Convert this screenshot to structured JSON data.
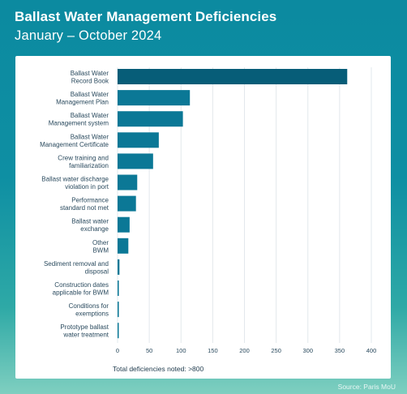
{
  "header": {
    "title": "Ballast Water Management Deficiencies",
    "subtitle": "January – October 2024"
  },
  "footer": {
    "total_note": "Total deficiencies noted: >800",
    "source": "Source: Paris MoU"
  },
  "colors": {
    "bar": "#0b7896",
    "bar_highlight": "#075d78",
    "grid": "#e2e8ec",
    "text": "#2a4a5e"
  },
  "chart_data": {
    "type": "bar",
    "orientation": "horizontal",
    "title": "Ballast Water Management Deficiencies",
    "subtitle": "January – October 2024",
    "categories": [
      [
        "Ballast Water",
        "Record Book"
      ],
      [
        "Ballast Water",
        "Management Plan"
      ],
      [
        "Ballast Water",
        "Management system"
      ],
      [
        "Ballast Water",
        "Management Certificate"
      ],
      [
        "Crew training and",
        "familiarization"
      ],
      [
        "Ballast water discharge",
        "violation in port"
      ],
      [
        "Performance",
        "standard not met"
      ],
      [
        "Ballast water",
        "exchange"
      ],
      [
        "Other",
        "BWM"
      ],
      [
        "Sediment removal and",
        "disposal"
      ],
      [
        "Construction dates",
        "applicable for BWM"
      ],
      [
        "Conditions for",
        "exemptions"
      ],
      [
        "Prototype ballast",
        "water treatment"
      ]
    ],
    "values": [
      362,
      114,
      103,
      65,
      56,
      31,
      29,
      19,
      17,
      3,
      2,
      2,
      1
    ],
    "xlim": [
      0,
      400
    ],
    "xticks": [
      "0",
      "50",
      "100",
      "150",
      "200",
      "250",
      "300",
      "350",
      "400"
    ],
    "xlabel": "",
    "ylabel": "",
    "grid": true,
    "legend": "none"
  }
}
